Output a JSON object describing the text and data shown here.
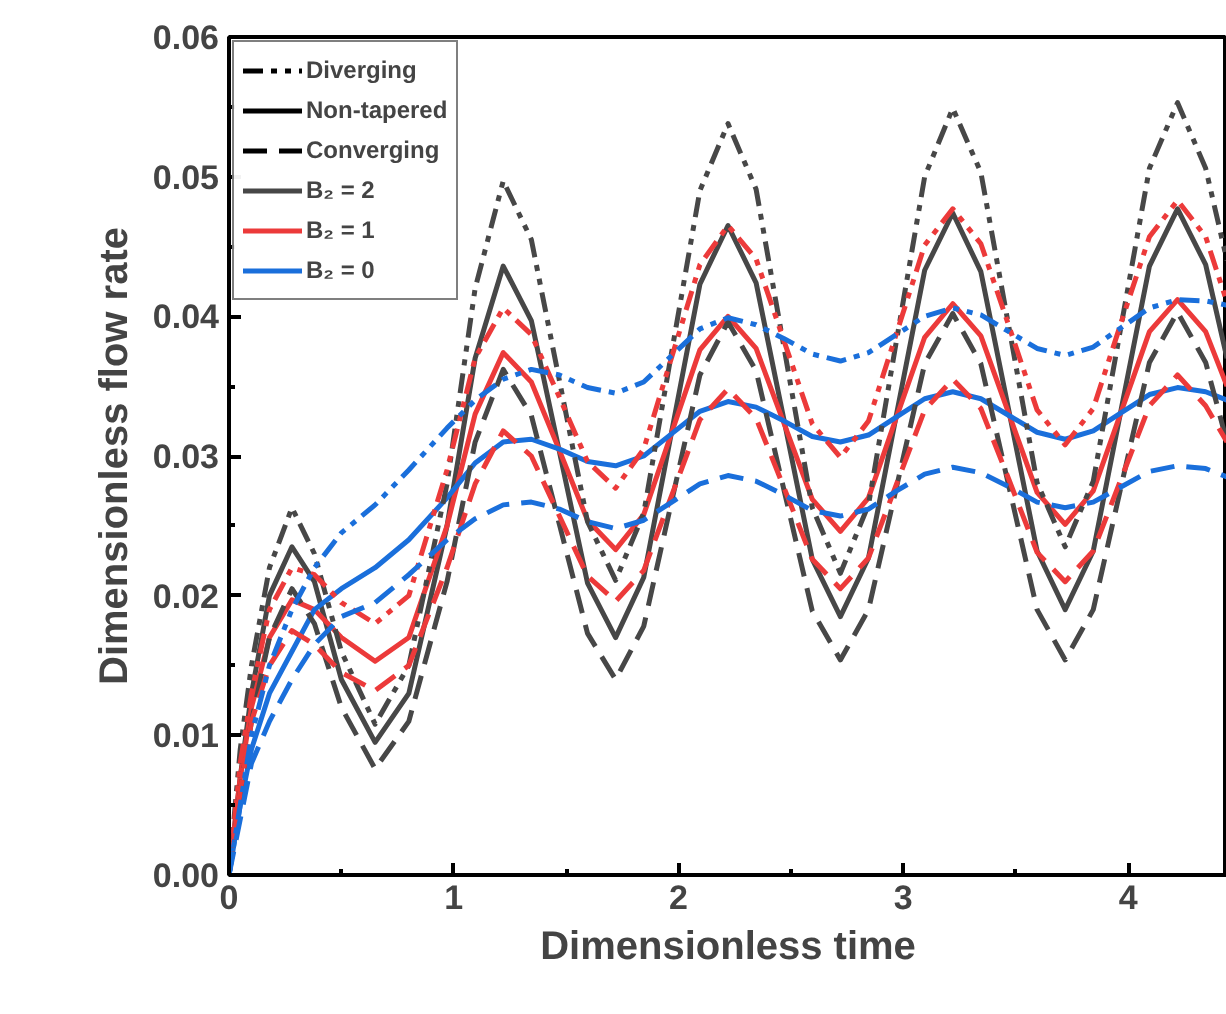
{
  "chart_data": {
    "type": "line",
    "xlabel": "Dimensionless time",
    "ylabel": "Dimensionless flow rate",
    "x": [
      0,
      0.05,
      0.1,
      0.18,
      0.28,
      0.38,
      0.5,
      0.65,
      0.8,
      0.97,
      1.095,
      1.22,
      1.345,
      1.47,
      1.595,
      1.72,
      1.845,
      1.97,
      2.095,
      2.22,
      2.345,
      2.47,
      2.595,
      2.72,
      2.845,
      2.97,
      3.095,
      3.22,
      3.345,
      3.47,
      3.595,
      3.72,
      3.845,
      3.97,
      4.095,
      4.22,
      4.345,
      4.44
    ],
    "xlim": [
      0,
      4.44
    ],
    "ylim": [
      0,
      0.06
    ],
    "xticks": [
      0,
      {
        "value": 0.5,
        "label": null
      },
      1,
      {
        "value": 1.5,
        "label": null
      },
      2,
      {
        "value": 2.5,
        "label": null
      },
      3,
      {
        "value": 3.5,
        "label": null
      },
      4
    ],
    "yticks": [
      {
        "value": 0,
        "label": "0.00"
      },
      {
        "value": 0.005,
        "label": null
      },
      {
        "value": 0.01,
        "label": "0.01"
      },
      {
        "value": 0.015,
        "label": null
      },
      {
        "value": 0.02,
        "label": "0.02"
      },
      {
        "value": 0.025,
        "label": null
      },
      {
        "value": 0.03,
        "label": "0.03"
      },
      {
        "value": 0.035,
        "label": null
      },
      {
        "value": 0.04,
        "label": "0.04"
      },
      {
        "value": 0.045,
        "label": null
      },
      {
        "value": 0.05,
        "label": "0.05"
      },
      {
        "value": 0.055,
        "label": null
      },
      {
        "value": 0.06,
        "label": "0.06"
      }
    ],
    "grid": false,
    "legend": "top left",
    "marker": "none",
    "series": [
      {
        "name": "Diverging",
        "color": "#000000",
        "line_style": "dashdotdot",
        "values": [
          null,
          null,
          null,
          null,
          null,
          null,
          null,
          null,
          null,
          null,
          null,
          null,
          null,
          null,
          null,
          null,
          null,
          null,
          null,
          null,
          null,
          null,
          null,
          null,
          null,
          null,
          null,
          null,
          null,
          null,
          null,
          null,
          null,
          null,
          null,
          null,
          null,
          null
        ]
      },
      {
        "name": "Non-tapered",
        "color": "#000000",
        "line_style": "solid",
        "values": [
          null,
          null,
          null,
          null,
          null,
          null,
          null,
          null,
          null,
          null,
          null,
          null,
          null,
          null,
          null,
          null,
          null,
          null,
          null,
          null,
          null,
          null,
          null,
          null,
          null,
          null,
          null,
          null,
          null,
          null,
          null,
          null,
          null,
          null,
          null,
          null,
          null,
          null
        ]
      },
      {
        "name": "Converging",
        "color": "#000000",
        "line_style": "dashed",
        "values": [
          null,
          null,
          null,
          null,
          null,
          null,
          null,
          null,
          null,
          null,
          null,
          null,
          null,
          null,
          null,
          null,
          null,
          null,
          null,
          null,
          null,
          null,
          null,
          null,
          null,
          null,
          null,
          null,
          null,
          null,
          null,
          null,
          null,
          null,
          null,
          null,
          null,
          null
        ]
      },
      {
        "name": "B₂ = 2",
        "color": "#474747",
        "line_style": "solid",
        "values": [
          0,
          0.007,
          0.013,
          0.02,
          0.0235,
          0.021,
          0.014,
          0.0095,
          0.013,
          0.025,
          0.037,
          0.0436,
          0.0397,
          0.0303,
          0.0209,
          0.017,
          0.0213,
          0.0318,
          0.0423,
          0.0465,
          0.0424,
          0.0325,
          0.0226,
          0.0185,
          0.0227,
          0.033,
          0.0433,
          0.0474,
          0.0432,
          0.0332,
          0.0232,
          0.019,
          0.0232,
          0.0334,
          0.0436,
          0.0477,
          0.0437,
          0.037
        ]
      },
      {
        "name": "B₂ = 1",
        "color": "#ec3a3a",
        "line_style": "solid",
        "values": [
          0,
          0.007,
          0.012,
          0.017,
          0.0197,
          0.019,
          0.017,
          0.0153,
          0.017,
          0.025,
          0.033,
          0.0374,
          0.0353,
          0.0304,
          0.0254,
          0.0233,
          0.0258,
          0.0317,
          0.0376,
          0.04,
          0.0377,
          0.0323,
          0.0269,
          0.0246,
          0.027,
          0.0328,
          0.0385,
          0.0409,
          0.0386,
          0.033,
          0.0274,
          0.0251,
          0.0275,
          0.0332,
          0.0389,
          0.0412,
          0.0389,
          0.035
        ]
      },
      {
        "name": "B₂ = 0",
        "color": "#1a6fdb",
        "line_style": "solid",
        "values": [
          0,
          0.005,
          0.009,
          0.013,
          0.016,
          0.019,
          0.0205,
          0.022,
          0.024,
          0.027,
          0.0295,
          0.031,
          0.0312,
          0.0305,
          0.0296,
          0.0293,
          0.03,
          0.0316,
          0.0332,
          0.0339,
          0.0335,
          0.0325,
          0.0314,
          0.031,
          0.0315,
          0.0328,
          0.0341,
          0.0346,
          0.0341,
          0.0329,
          0.0317,
          0.0312,
          0.0318,
          0.0331,
          0.0344,
          0.0349,
          0.0346,
          0.034
        ]
      },
      {
        "color": "#474747",
        "line_style": "dashdotdot",
        "values": [
          0,
          0.009,
          0.015,
          0.022,
          0.0263,
          0.023,
          0.016,
          0.0108,
          0.015,
          0.028,
          0.042,
          0.0497,
          0.0455,
          0.0354,
          0.0253,
          0.0211,
          0.0259,
          0.0375,
          0.049,
          0.0538,
          0.0491,
          0.0377,
          0.0263,
          0.0216,
          0.0265,
          0.0383,
          0.05,
          0.0549,
          0.0503,
          0.0392,
          0.0281,
          0.0235,
          0.0282,
          0.0394,
          0.0506,
          0.0553,
          0.0506,
          0.044
        ]
      },
      {
        "color": "#474747",
        "line_style": "dashed",
        "values": [
          0,
          0.006,
          0.011,
          0.017,
          0.0205,
          0.018,
          0.012,
          0.0076,
          0.011,
          0.021,
          0.031,
          0.0362,
          0.0329,
          0.0251,
          0.0173,
          0.014,
          0.0178,
          0.0268,
          0.0358,
          0.0396,
          0.0361,
          0.0275,
          0.0189,
          0.0154,
          0.019,
          0.0278,
          0.0366,
          0.0402,
          0.0366,
          0.0278,
          0.019,
          0.0154,
          0.019,
          0.0279,
          0.0367,
          0.0403,
          0.0367,
          0.031
        ]
      },
      {
        "color": "#ec3a3a",
        "line_style": "dashdotdot",
        "values": [
          0,
          0.008,
          0.013,
          0.019,
          0.022,
          0.0215,
          0.0195,
          0.018,
          0.02,
          0.029,
          0.037,
          0.0406,
          0.0387,
          0.0342,
          0.0296,
          0.0277,
          0.0305,
          0.0371,
          0.0437,
          0.0465,
          0.0441,
          0.0382,
          0.0323,
          0.0299,
          0.0325,
          0.0388,
          0.0451,
          0.0477,
          0.0452,
          0.0393,
          0.0333,
          0.0308,
          0.0334,
          0.0396,
          0.0457,
          0.0483,
          0.0457,
          0.041
        ]
      },
      {
        "color": "#ec3a3a",
        "line_style": "dashed",
        "values": [
          0,
          0.006,
          0.011,
          0.015,
          0.0175,
          0.0165,
          0.0145,
          0.0132,
          0.015,
          0.022,
          0.028,
          0.0318,
          0.03,
          0.0257,
          0.0214,
          0.0196,
          0.0218,
          0.0272,
          0.0326,
          0.0348,
          0.0327,
          0.0277,
          0.0226,
          0.0205,
          0.0227,
          0.028,
          0.0333,
          0.0355,
          0.0334,
          0.0283,
          0.0231,
          0.021,
          0.0232,
          0.0284,
          0.0336,
          0.0358,
          0.0336,
          0.031
        ]
      },
      {
        "color": "#1a6fdb",
        "line_style": "dashdotdot",
        "values": [
          0,
          0.005,
          0.01,
          0.015,
          0.019,
          0.022,
          0.0245,
          0.0265,
          0.029,
          0.032,
          0.034,
          0.0355,
          0.0362,
          0.0358,
          0.0349,
          0.0345,
          0.0353,
          0.0372,
          0.0391,
          0.0399,
          0.0394,
          0.0384,
          0.0373,
          0.0368,
          0.0374,
          0.0387,
          0.04,
          0.0406,
          0.0401,
          0.0389,
          0.0377,
          0.0372,
          0.0378,
          0.0392,
          0.0406,
          0.0412,
          0.0411,
          0.0408
        ]
      },
      {
        "color": "#1a6fdb",
        "line_style": "dashed",
        "values": [
          0,
          0.004,
          0.008,
          0.011,
          0.014,
          0.0165,
          0.0185,
          0.0195,
          0.0215,
          0.024,
          0.0255,
          0.0265,
          0.0267,
          0.0262,
          0.0253,
          0.0248,
          0.0254,
          0.0267,
          0.028,
          0.0286,
          0.0282,
          0.0272,
          0.0261,
          0.0257,
          0.0262,
          0.0275,
          0.0287,
          0.0292,
          0.0288,
          0.0278,
          0.0267,
          0.0263,
          0.0267,
          0.0278,
          0.0289,
          0.0293,
          0.0291,
          0.0285
        ]
      }
    ]
  }
}
